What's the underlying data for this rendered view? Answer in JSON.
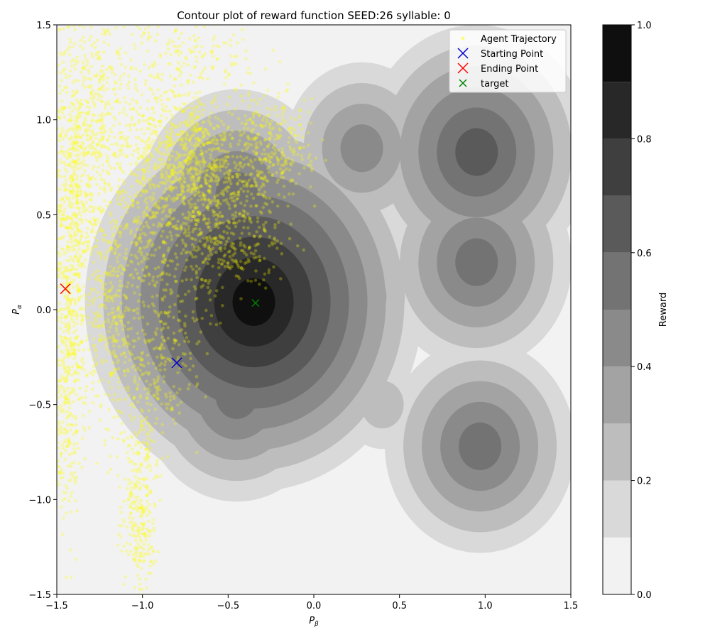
{
  "chart_data": {
    "type": "contour",
    "title": "Contour plot of reward function SEED:26 syllable: 0",
    "xlabel": "P",
    "xlabel_sub": "β",
    "ylabel": "P",
    "ylabel_sub": "α",
    "xlim": [
      -1.5,
      1.5
    ],
    "ylim": [
      -1.5,
      1.5
    ],
    "x_ticks": [
      "−1.5",
      "−1.0",
      "−0.5",
      "0.0",
      "0.5",
      "1.0",
      "1.5"
    ],
    "y_ticks": [
      "−1.5",
      "−1.0",
      "−0.5",
      "0.0",
      "0.5",
      "1.0",
      "1.5"
    ],
    "grid": false,
    "legend_position": "top-right",
    "colorbar": {
      "label": "Reward",
      "range": [
        0,
        1
      ],
      "ticks": [
        "0.0",
        "0.2",
        "0.4",
        "0.6",
        "0.8",
        "1.0"
      ],
      "levels": [
        0,
        0.1,
        0.2,
        0.3,
        0.4,
        0.5,
        0.6,
        0.7,
        0.8,
        0.9,
        1.0
      ],
      "level_colors": [
        "#f2f2f2",
        "#d9d9d9",
        "#bdbdbd",
        "#a3a3a3",
        "#8a8a8a",
        "#737373",
        "#5a5a5a",
        "#3f3f3f",
        "#282828",
        "#0f0f0f"
      ]
    },
    "reward_peaks": [
      {
        "x": -0.35,
        "y": 0.04,
        "level": 0.9
      },
      {
        "x": -0.45,
        "y": 0.6,
        "level": 0.5
      },
      {
        "x": -0.45,
        "y": -0.45,
        "level": 0.5
      },
      {
        "x": 0.28,
        "y": 0.85,
        "level": 0.4
      },
      {
        "x": 0.95,
        "y": 0.83,
        "level": 0.6
      },
      {
        "x": 0.95,
        "y": 0.25,
        "level": 0.5
      },
      {
        "x": 0.97,
        "y": -0.72,
        "level": 0.5
      },
      {
        "x": 0.3,
        "y": 0.07,
        "level": 0.3
      },
      {
        "x": 0.4,
        "y": -0.5,
        "level": 0.2
      }
    ],
    "legend": [
      {
        "label": "Agent Trajectory",
        "marker": "dot",
        "color": "#ffff00"
      },
      {
        "label": "Starting Point",
        "marker": "x",
        "color": "#0000cc"
      },
      {
        "label": "Ending Point",
        "marker": "x",
        "color": "#ff0000"
      },
      {
        "label": "target",
        "marker": "x",
        "color": "#008000"
      }
    ],
    "points": {
      "start": {
        "x": -0.8,
        "y": -0.28
      },
      "end": {
        "x": -1.45,
        "y": 0.11
      },
      "target": {
        "x": -0.34,
        "y": 0.035
      }
    },
    "trajectory_color": "#ffff00",
    "trajectory_clusters": [
      {
        "x": -1.42,
        "y": 0.4,
        "sx": 0.06,
        "sy": 0.55,
        "n": 700
      },
      {
        "x": -1.3,
        "y": 0.95,
        "sx": 0.08,
        "sy": 0.3,
        "n": 350
      },
      {
        "x": -1.2,
        "y": 0.0,
        "sx": 0.07,
        "sy": 0.3,
        "n": 300
      },
      {
        "x": -1.45,
        "y": -0.5,
        "sx": 0.05,
        "sy": 0.35,
        "n": 250
      },
      {
        "x": -1.02,
        "y": -0.85,
        "sx": 0.06,
        "sy": 0.3,
        "n": 250
      },
      {
        "x": -1.05,
        "y": 0.8,
        "sx": 0.15,
        "sy": 0.35,
        "n": 400
      },
      {
        "x": -0.75,
        "y": 0.85,
        "sx": 0.12,
        "sy": 0.15,
        "n": 450
      },
      {
        "x": -0.55,
        "y": 0.6,
        "sx": 0.15,
        "sy": 0.2,
        "n": 450
      },
      {
        "x": -0.25,
        "y": 0.85,
        "sx": 0.12,
        "sy": 0.15,
        "n": 300
      },
      {
        "x": -0.85,
        "y": 0.35,
        "sx": 0.15,
        "sy": 0.25,
        "n": 300
      },
      {
        "x": -0.9,
        "y": -0.3,
        "sx": 0.12,
        "sy": 0.2,
        "n": 200
      },
      {
        "x": -0.7,
        "y": 1.35,
        "sx": 0.2,
        "sy": 0.1,
        "n": 150
      },
      {
        "x": -0.45,
        "y": 0.3,
        "sx": 0.15,
        "sy": 0.12,
        "n": 120
      },
      {
        "x": -1.02,
        "y": -1.2,
        "sx": 0.05,
        "sy": 0.12,
        "n": 100
      }
    ]
  }
}
